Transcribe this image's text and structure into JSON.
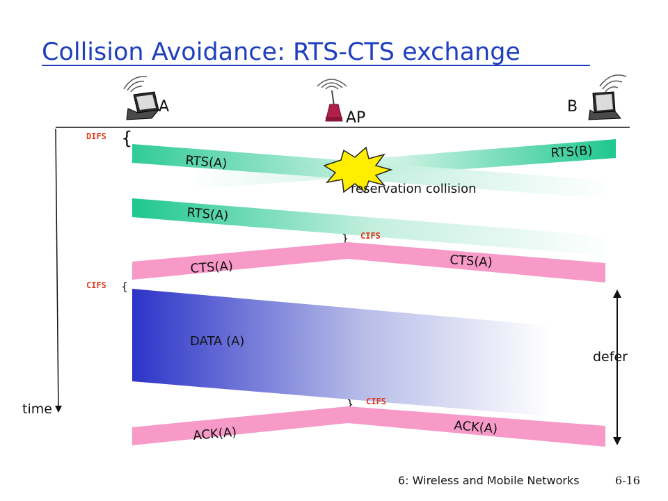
{
  "title": "Collision Avoidance: RTS-CTS exchange",
  "stations": {
    "a": "A",
    "ap": "AP",
    "b": "B"
  },
  "frames": {
    "rts_a_1": "RTS(A)",
    "rts_b": "RTS(B)",
    "collision": "reservation collision",
    "rts_a_2": "RTS(A)",
    "cts_a_left": "CTS(A)",
    "cts_a_right": "CTS(A)",
    "data": "DATA (A)",
    "ack_a_left": "ACK(A)",
    "ack_a_right": "ACK(A)"
  },
  "spacings": {
    "difs": "DIFS",
    "cifs_ap_1": "CIFS",
    "cifs_a": "CIFS",
    "cifs_ap_2": "CIFS"
  },
  "axis": {
    "time": "time",
    "defer": "defer"
  },
  "footer": {
    "chapter": "6: Wireless and Mobile Networks",
    "page": "6-16"
  },
  "colors": {
    "title": "#1f3fbf",
    "rts": "#1fc78f",
    "cts_ack": "#f79ac7",
    "data": "#2c34c8",
    "collision_star": "#ffee00",
    "ifs_label": "#e03a1e"
  },
  "icons": [
    "laptop-wireless-icon",
    "access-point-icon",
    "collision-star-icon"
  ]
}
